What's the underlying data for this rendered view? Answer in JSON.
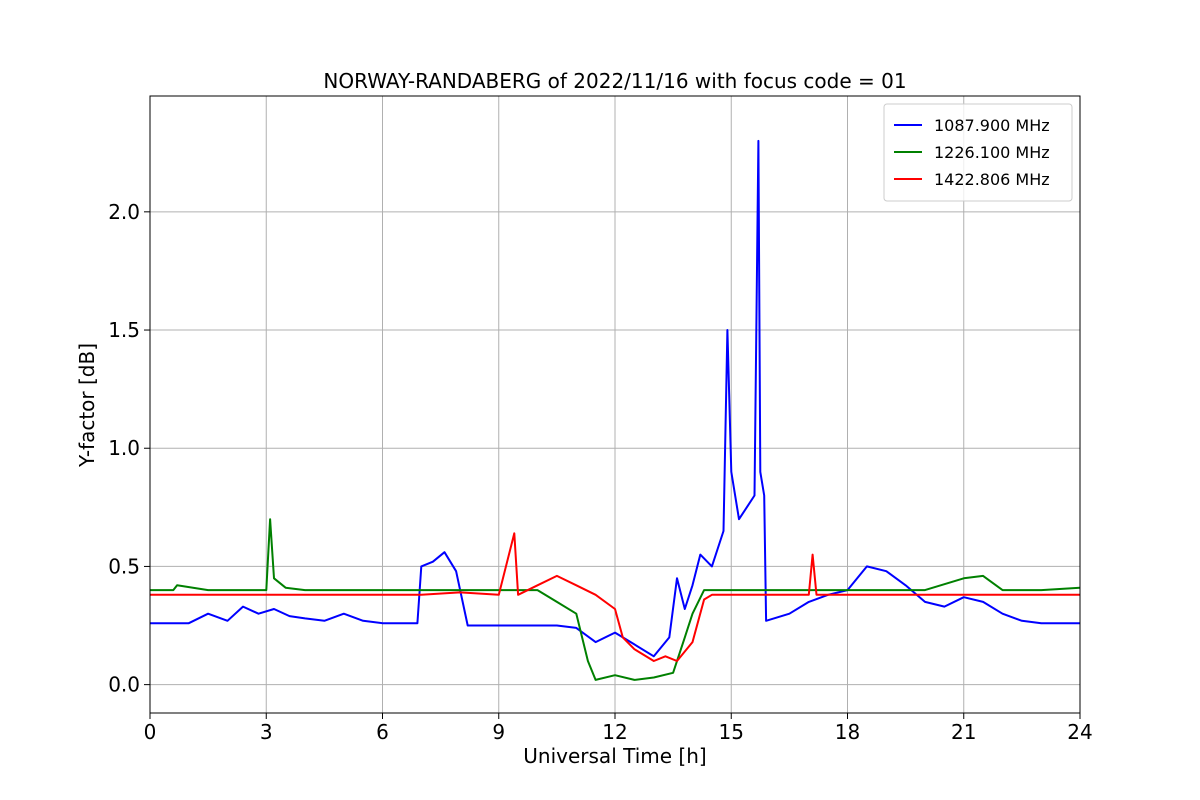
{
  "chart_data": {
    "type": "line",
    "title": "NORWAY-RANDABERG of 2022/11/16 with focus code = 01",
    "xlabel": "Universal Time [h]",
    "ylabel": "Y-factor [dB]",
    "xlim": [
      0,
      24
    ],
    "ylim": [
      -0.12,
      2.49
    ],
    "xticks": [
      "0",
      "3",
      "6",
      "9",
      "12",
      "15",
      "18",
      "21",
      "24"
    ],
    "yticks": [
      "0.0",
      "0.5",
      "1.0",
      "1.5",
      "2.0"
    ],
    "grid": true,
    "legend_position": "top-right",
    "series": [
      {
        "name": "1087.900 MHz",
        "color": "#0000ff",
        "x": [
          0,
          1.0,
          1.5,
          2.0,
          2.4,
          2.8,
          3.2,
          3.6,
          4.0,
          4.5,
          5.0,
          5.5,
          6.0,
          6.5,
          6.9,
          7.0,
          7.3,
          7.6,
          7.9,
          8.2,
          8.5,
          9.0,
          9.5,
          10.0,
          10.5,
          11.0,
          11.5,
          12.0,
          12.5,
          13.0,
          13.4,
          13.6,
          13.8,
          14.0,
          14.2,
          14.5,
          14.8,
          14.9,
          15.0,
          15.2,
          15.4,
          15.6,
          15.7,
          15.75,
          15.85,
          15.9,
          16.5,
          17.0,
          17.5,
          18.0,
          18.5,
          19.0,
          19.5,
          20.0,
          20.5,
          21.0,
          21.5,
          22.0,
          22.5,
          23.0,
          24.0
        ],
        "y": [
          0.26,
          0.26,
          0.3,
          0.27,
          0.33,
          0.3,
          0.32,
          0.29,
          0.28,
          0.27,
          0.3,
          0.27,
          0.26,
          0.26,
          0.26,
          0.5,
          0.52,
          0.56,
          0.48,
          0.25,
          0.25,
          0.25,
          0.25,
          0.25,
          0.25,
          0.24,
          0.18,
          0.22,
          0.17,
          0.12,
          0.2,
          0.45,
          0.32,
          0.42,
          0.55,
          0.5,
          0.65,
          1.5,
          0.9,
          0.7,
          0.75,
          0.8,
          2.3,
          0.9,
          0.8,
          0.27,
          0.3,
          0.35,
          0.38,
          0.4,
          0.5,
          0.48,
          0.42,
          0.35,
          0.33,
          0.37,
          0.35,
          0.3,
          0.27,
          0.26,
          0.26
        ]
      },
      {
        "name": "1226.100 MHz",
        "color": "#008000",
        "x": [
          0,
          0.6,
          0.7,
          1.5,
          2.5,
          3.0,
          3.1,
          3.2,
          3.5,
          4.0,
          5.0,
          6.0,
          7.0,
          8.0,
          9.0,
          10.0,
          10.5,
          11.0,
          11.3,
          11.5,
          12.0,
          12.5,
          13.0,
          13.5,
          13.8,
          14.0,
          14.3,
          15.0,
          16.0,
          17.0,
          18.0,
          19.0,
          20.0,
          21.0,
          21.5,
          22.0,
          23.0,
          24.0
        ],
        "y": [
          0.4,
          0.4,
          0.42,
          0.4,
          0.4,
          0.4,
          0.7,
          0.45,
          0.41,
          0.4,
          0.4,
          0.4,
          0.4,
          0.4,
          0.4,
          0.4,
          0.35,
          0.3,
          0.1,
          0.02,
          0.04,
          0.02,
          0.03,
          0.05,
          0.2,
          0.3,
          0.4,
          0.4,
          0.4,
          0.4,
          0.4,
          0.4,
          0.4,
          0.45,
          0.46,
          0.4,
          0.4,
          0.41
        ]
      },
      {
        "name": "1422.806 MHz",
        "color": "#ff0000",
        "x": [
          0,
          3.0,
          6.0,
          7.0,
          8.0,
          9.0,
          9.4,
          9.5,
          10.0,
          10.5,
          11.0,
          11.5,
          12.0,
          12.2,
          12.5,
          13.0,
          13.3,
          13.6,
          14.0,
          14.3,
          14.5,
          15.0,
          16.0,
          17.0,
          17.1,
          17.2,
          18.0,
          21.0,
          24.0
        ],
        "y": [
          0.38,
          0.38,
          0.38,
          0.38,
          0.39,
          0.38,
          0.64,
          0.38,
          0.42,
          0.46,
          0.42,
          0.38,
          0.32,
          0.2,
          0.15,
          0.1,
          0.12,
          0.1,
          0.18,
          0.36,
          0.38,
          0.38,
          0.38,
          0.38,
          0.55,
          0.38,
          0.38,
          0.38,
          0.38
        ]
      }
    ]
  }
}
